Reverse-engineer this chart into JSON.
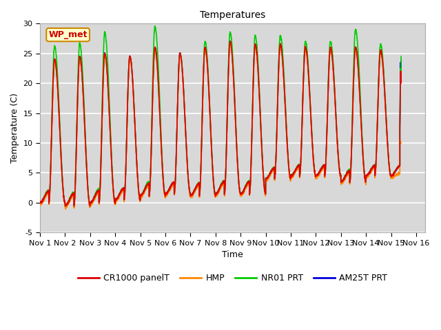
{
  "title": "Temperatures",
  "xlabel": "Time",
  "ylabel": "Temperature (C)",
  "ylim": [
    -5,
    30
  ],
  "xlim": [
    0,
    15.35
  ],
  "plot_bg_color": "#d8d8d8",
  "grid_color": "#ffffff",
  "label_box_text": "WP_met",
  "label_box_facecolor": "#ffffcc",
  "label_box_edgecolor": "#cc8800",
  "label_box_textcolor": "#cc0000",
  "colors": {
    "CR1000_panelT": "#dd0000",
    "HMP": "#ff8800",
    "NR01_PRT": "#00cc00",
    "AM25T_PRT": "#0000dd"
  },
  "series_labels": [
    "CR1000 panelT",
    "HMP",
    "NR01 PRT",
    "AM25T PRT"
  ],
  "xtick_labels": [
    "Nov 1",
    "Nov 2",
    "Nov 3",
    "Nov 4",
    "Nov 5",
    "Nov 6",
    "Nov 7",
    "Nov 8",
    "Nov 9",
    "Nov 10",
    "Nov 11",
    "Nov 12",
    "Nov 13",
    "Nov 14",
    "Nov 15",
    "Nov 16"
  ],
  "xtick_positions": [
    0,
    1,
    2,
    3,
    4,
    5,
    6,
    7,
    8,
    9,
    10,
    11,
    12,
    13,
    14,
    15
  ],
  "ytick_positions": [
    -5,
    0,
    5,
    10,
    15,
    20,
    25,
    30
  ],
  "line_width": 1.2,
  "fontsize_ticks": 8,
  "fontsize_labels": 9,
  "fontsize_title": 10,
  "fontsize_legend": 9,
  "figsize": [
    6.4,
    4.8
  ],
  "dpi": 100
}
